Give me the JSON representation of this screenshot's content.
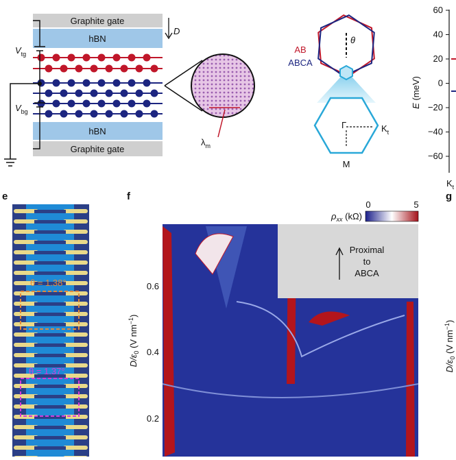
{
  "panel_top_left": {
    "top_gate": "Graphite gate",
    "top_hbn": "hBN",
    "field": "D",
    "vtg": {
      "main": "V",
      "sub": "tg"
    },
    "vbg": {
      "main": "V",
      "sub": "bg"
    },
    "bottom_hbn": "hBN",
    "bottom_gate": "Graphite gate",
    "moire": {
      "main": "λ",
      "sub": "m"
    }
  },
  "panel_top_mid": {
    "legend": [
      "AB",
      "ABCA"
    ],
    "angle": "θ",
    "gamma": "Γ",
    "kt": {
      "main": "K",
      "sub": "t"
    },
    "m": "M"
  },
  "panel_top_right": {
    "yticks": [
      "60",
      "40",
      "20",
      "0",
      "−20",
      "−40",
      "−60"
    ],
    "ylabel": {
      "main": "E",
      "rest": " (meV)"
    },
    "xlabel": {
      "main": "K",
      "sub": "t"
    }
  },
  "panel_labels": [
    "e",
    "f",
    "g"
  ],
  "panel_e": {
    "device_1": "θ = 1.38°",
    "device_2": "θ = 1.37°"
  },
  "panel_f": {
    "colorbar": {
      "label": {
        "main": "ρ",
        "sub": "xx",
        "rest": " (kΩ)"
      },
      "min": "0",
      "max": "5"
    },
    "inset": [
      "Proximal",
      "to",
      "ABCA"
    ],
    "yticks": [
      "0.6",
      "0.4",
      "0.2"
    ],
    "ylabel": {
      "main": "D/ε",
      "sub": "0",
      "rest": " (V nm",
      "sup": "−1",
      "end": ")"
    }
  },
  "panel_g": {
    "ylabel": {
      "main": "D/ε",
      "sub": "0",
      "rest": " (V nm",
      "sup": "−1",
      "end": ")"
    }
  }
}
